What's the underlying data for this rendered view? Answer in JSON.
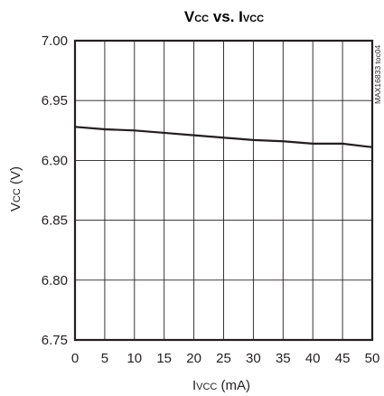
{
  "chart_data": {
    "type": "line",
    "title": {
      "main_1": "V",
      "sub_1": "CC",
      "main_2": " vs. I",
      "sub_2": "VCC"
    },
    "xlabel": {
      "main": "I",
      "sub": "VCC",
      "unit": " (mA)"
    },
    "ylabel": {
      "main": "V",
      "sub": "CC",
      "unit": " (V)"
    },
    "xlim": [
      0,
      50
    ],
    "ylim": [
      6.75,
      7.0
    ],
    "x_ticks": [
      0,
      5,
      10,
      15,
      20,
      25,
      30,
      35,
      40,
      45,
      50
    ],
    "x_tick_labels": [
      "0",
      "5",
      "10",
      "15",
      "20",
      "25",
      "30",
      "35",
      "40",
      "45",
      "50"
    ],
    "y_ticks": [
      6.75,
      6.8,
      6.85,
      6.9,
      6.95,
      7.0
    ],
    "y_tick_labels": [
      "6.75",
      "6.80",
      "6.85",
      "6.90",
      "6.95",
      "7.00"
    ],
    "grid": true,
    "series": [
      {
        "x": [
          0,
          5,
          10,
          15,
          20,
          25,
          30,
          35,
          40,
          45,
          50
        ],
        "y": [
          6.928,
          6.926,
          6.925,
          6.923,
          6.921,
          6.919,
          6.917,
          6.916,
          6.914,
          6.914,
          6.911
        ]
      }
    ],
    "watermark": "MAX16833 toc04",
    "colors": {
      "line": "#231f20",
      "grid": "#231f20",
      "text": "#231f20"
    }
  }
}
